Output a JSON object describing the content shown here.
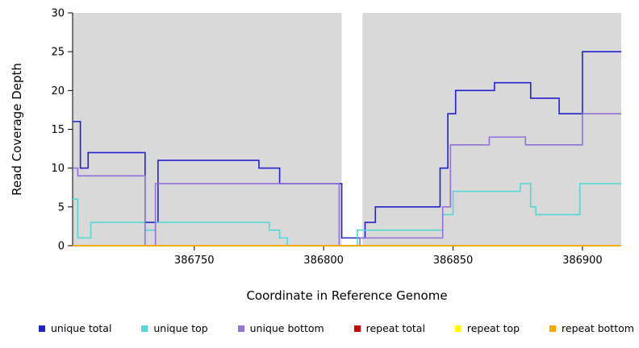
{
  "chart_data": {
    "type": "line",
    "subtype": "step-coverage-plot",
    "xlabel": "Coordinate in Reference Genome",
    "ylabel": "Read Coverage Depth",
    "xlim": [
      386703,
      386915
    ],
    "ylim": [
      0,
      30
    ],
    "x_ticks": [
      386750,
      386800,
      386850,
      386900
    ],
    "y_ticks": [
      0,
      5,
      10,
      15,
      20,
      25,
      30
    ],
    "grid": false,
    "legend_position": "bottom",
    "plot_background_color": "#d9d9d9",
    "background_regions": [
      {
        "from": 386703,
        "to": 386807,
        "color": "#d9d9d9",
        "kind": "covered-region"
      },
      {
        "from": 386807,
        "to": 386815,
        "color": "#ffffff",
        "kind": "gap-region"
      },
      {
        "from": 386815,
        "to": 386915,
        "color": "#d9d9d9",
        "kind": "covered-region"
      }
    ],
    "series": [
      {
        "name": "unique total",
        "color": "#2222cc",
        "step_points": [
          [
            386703,
            16
          ],
          [
            386706,
            10
          ],
          [
            386709,
            12
          ],
          [
            386731,
            3
          ],
          [
            386736,
            11
          ],
          [
            386775,
            10
          ],
          [
            386783,
            8
          ],
          [
            386807,
            1
          ],
          [
            386816,
            3
          ],
          [
            386820,
            5
          ],
          [
            386845,
            10
          ],
          [
            386848,
            17
          ],
          [
            386851,
            20
          ],
          [
            386866,
            21
          ],
          [
            386880,
            19
          ],
          [
            386891,
            17
          ],
          [
            386900,
            25
          ],
          [
            386915,
            25
          ]
        ]
      },
      {
        "name": "unique top",
        "color": "#53d7d7",
        "step_points": [
          [
            386703,
            6
          ],
          [
            386705,
            1
          ],
          [
            386710,
            3
          ],
          [
            386731,
            2
          ],
          [
            386735,
            3
          ],
          [
            386779,
            2
          ],
          [
            386783,
            1
          ],
          [
            386786,
            0
          ],
          [
            386813,
            2
          ],
          [
            386846,
            4
          ],
          [
            386850,
            7
          ],
          [
            386876,
            8
          ],
          [
            386880,
            5
          ],
          [
            386882,
            4
          ],
          [
            386899,
            8
          ],
          [
            386915,
            8
          ]
        ]
      },
      {
        "name": "unique bottom",
        "color": "#9370db",
        "step_points": [
          [
            386703,
            10
          ],
          [
            386705,
            9
          ],
          [
            386731,
            0
          ],
          [
            386735,
            8
          ],
          [
            386806,
            0
          ],
          [
            386814,
            1
          ],
          [
            386846,
            5
          ],
          [
            386849,
            13
          ],
          [
            386864,
            14
          ],
          [
            386878,
            13
          ],
          [
            386900,
            17
          ],
          [
            386915,
            17
          ]
        ]
      },
      {
        "name": "repeat total",
        "color": "#cc0000",
        "step_points": [
          [
            386703,
            0
          ],
          [
            386915,
            0
          ]
        ]
      },
      {
        "name": "repeat top",
        "color": "#ffff00",
        "step_points": [
          [
            386703,
            0
          ],
          [
            386915,
            0
          ]
        ]
      },
      {
        "name": "repeat bottom",
        "color": "#ffa500",
        "step_points": [
          [
            386703,
            0
          ],
          [
            386915,
            0
          ]
        ]
      }
    ]
  }
}
